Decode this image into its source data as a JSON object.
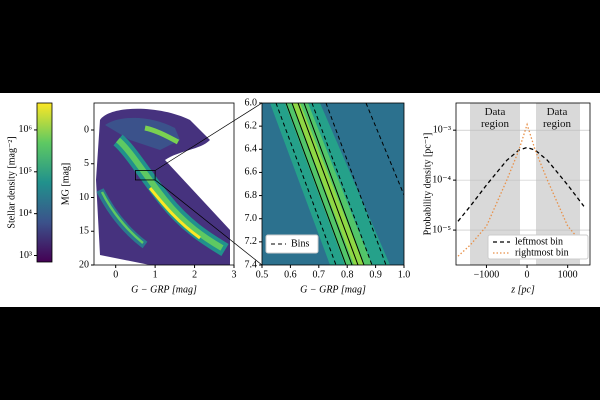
{
  "chart_data": [
    {
      "type": "colorbar",
      "ylabel": "Stellar density [mag⁻²]",
      "ylog": true,
      "ylim": [
        700,
        4400000
      ],
      "yticks": [
        {
          "value": 1000,
          "label": "10³"
        },
        {
          "value": 10000,
          "label": "10⁴"
        },
        {
          "value": 100000,
          "label": "10⁵"
        },
        {
          "value": 1000000,
          "label": "10⁶"
        }
      ]
    },
    {
      "type": "heatmap",
      "xlabel": "G − GRP [mag]",
      "ylabel": "MG [mag]",
      "xlim": [
        -0.55,
        3
      ],
      "xticks": [
        0,
        1,
        2,
        3
      ],
      "ylim": [
        20,
        -4
      ],
      "yticks": [
        0,
        5,
        10,
        15,
        20
      ]
    },
    {
      "type": "heatmap",
      "xlabel": "G − GRP [mag]",
      "legend": "lower left",
      "legend_entries": [
        "Bins"
      ],
      "xlim": [
        0.5,
        1.0
      ],
      "xticks": [
        {
          "value": 0.5,
          "label": "0.5"
        },
        0.6,
        0.7,
        0.8,
        0.9,
        {
          "value": 1.0,
          "label": "1.0"
        }
      ],
      "ylim": [
        7.4,
        6.0
      ],
      "yticks": [
        {
          "value": 6.0,
          "label": "6.0"
        },
        6.2,
        6.4,
        6.6,
        6.8,
        {
          "value": 7.0,
          "label": "7.0"
        },
        7.2,
        7.4
      ]
    },
    {
      "type": "line",
      "xlabel": "z [pc]",
      "ylabel": "Probability density [pc⁻¹]",
      "ylog": true,
      "grid": true,
      "legend": "lower right",
      "annotations": [
        "Data region",
        "Data region"
      ],
      "xlim": [
        -1750,
        1550
      ],
      "xticks": [
        {
          "value": -1000,
          "label": "−1000"
        },
        0,
        1000
      ],
      "ylim": [
        2e-06,
        0.0035
      ],
      "yticks": [
        {
          "value": 1e-05,
          "label": "10⁻⁵"
        },
        {
          "value": 0.0001,
          "label": "10⁻⁴"
        },
        {
          "value": 0.001,
          "label": "10⁻³"
        }
      ],
      "x": [
        -1700,
        -1400,
        -1000,
        -500,
        -200,
        0,
        200,
        500,
        1000,
        1400
      ],
      "series": [
        {
          "name": "leftmost bin",
          "color": "#000000",
          "dash": "4,3",
          "values": [
            1.5e-05,
            3e-05,
            8e-05,
            0.00025,
            0.0004,
            0.00045,
            0.0004,
            0.00025,
            8e-05,
            3e-05
          ]
        },
        {
          "name": "rightmost bin",
          "color": "#e8914a",
          "dash": "1.5,2",
          "values": [
            3e-06,
            5e-06,
            1.2e-05,
            0.0001,
            0.0004,
            0.0013,
            0.0004,
            0.0001,
            1.2e-05,
            5e-06
          ]
        }
      ]
    }
  ]
}
